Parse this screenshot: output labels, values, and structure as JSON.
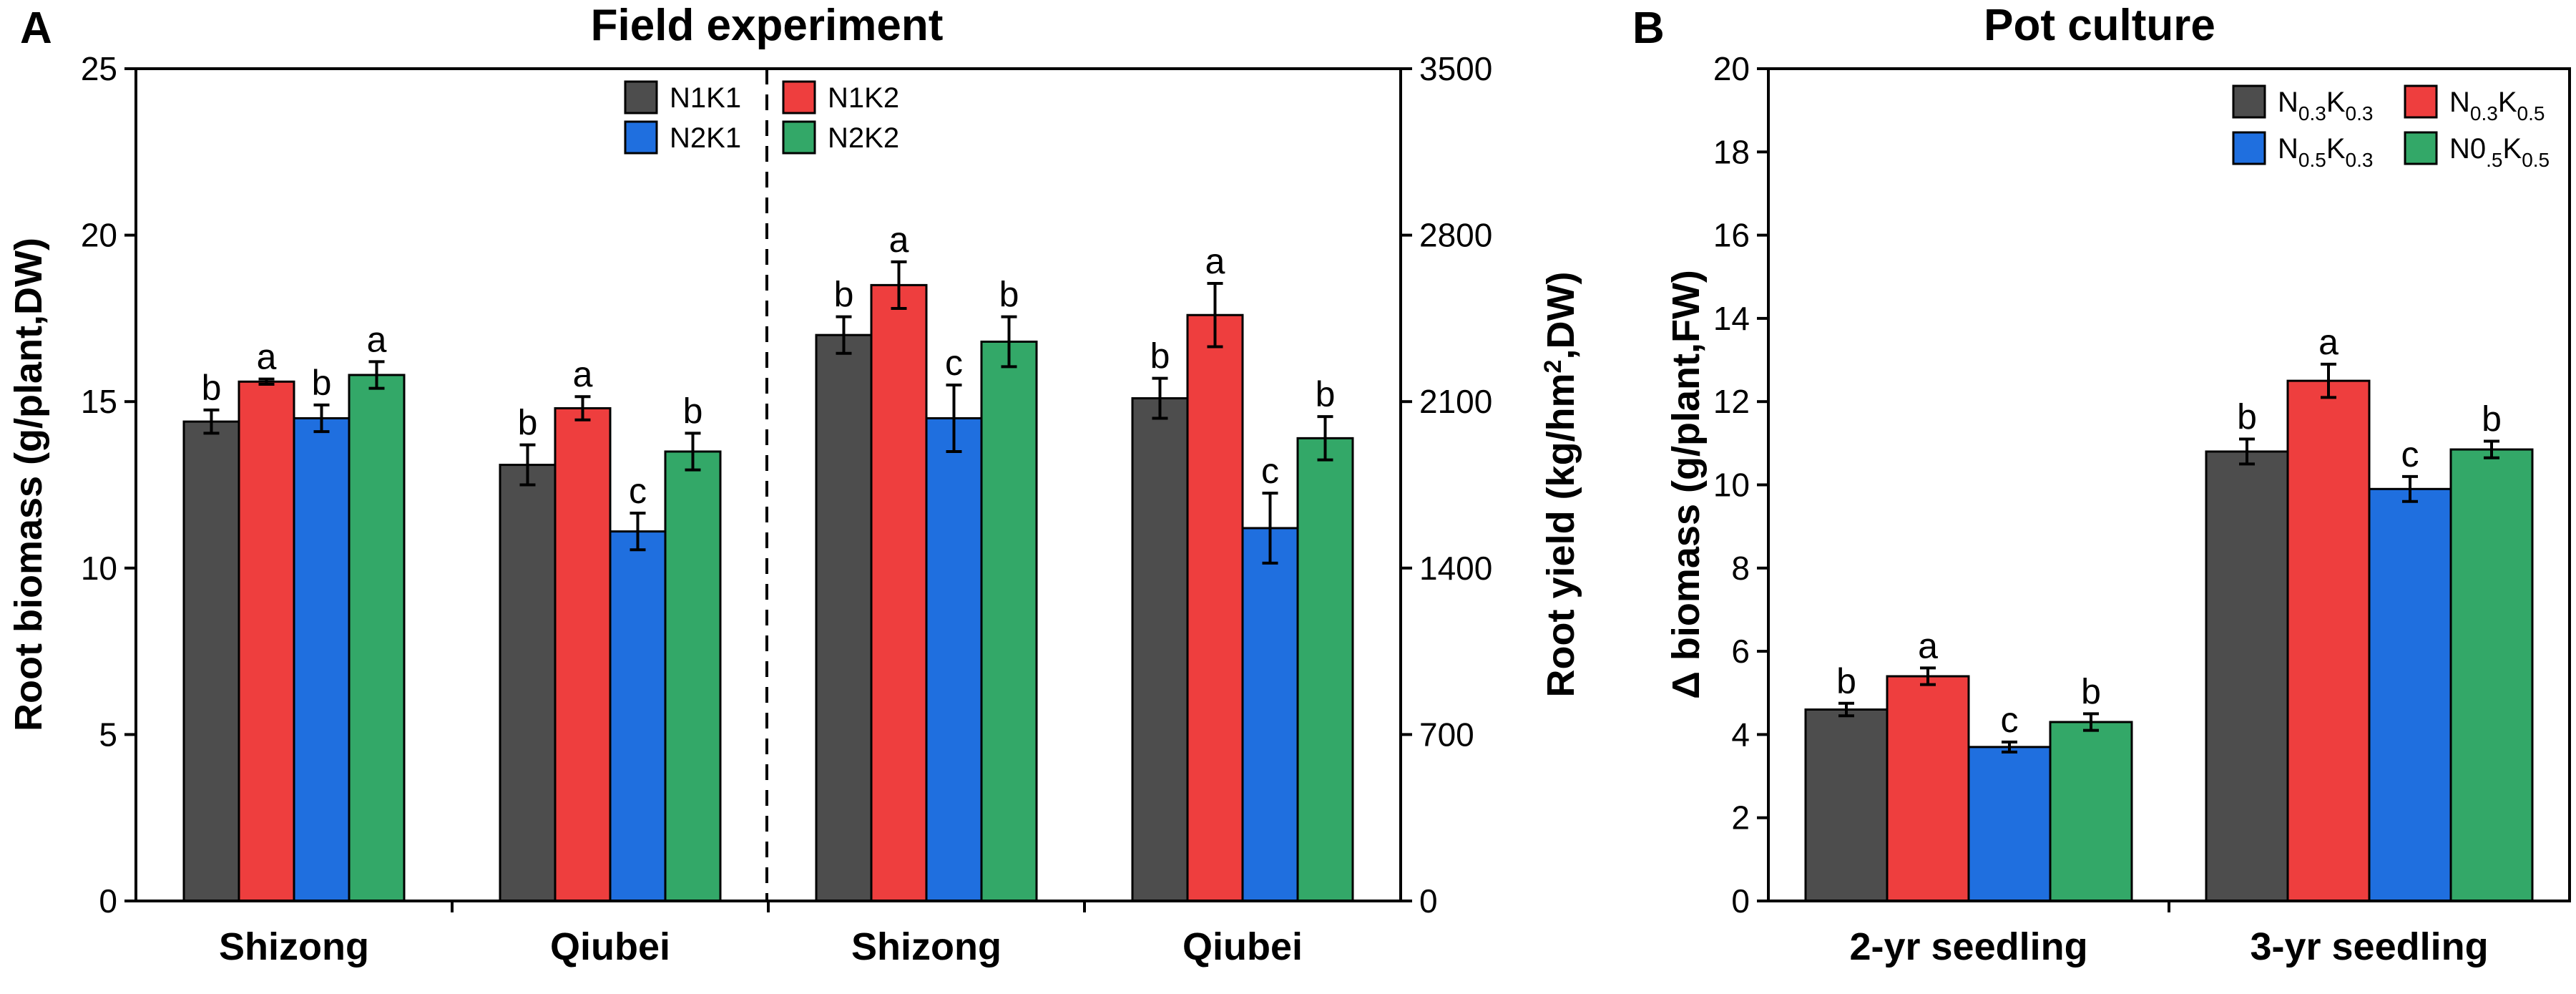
{
  "colors": {
    "N1K1": "#4d4d4d",
    "N1K2": "#ee3e3e",
    "N2K1": "#1f6fdf",
    "N2K2": "#33a868",
    "axis": "#000000",
    "background": "#ffffff"
  },
  "chart_data": [
    {
      "panel": "A",
      "type": "bar",
      "title": "Field experiment",
      "ylabel": "Root biomass (g/plant,DW)",
      "ylabel_right": {
        "main": "Root yield (kg/hm",
        "sup": "2",
        "tail": ",DW)"
      },
      "ylim": [
        0,
        25
      ],
      "y_ticks": [
        "0",
        "5",
        "10",
        "15",
        "20",
        "25"
      ],
      "ylim_right": [
        0,
        3500
      ],
      "y_ticks_right": [
        "0",
        "700",
        "1400",
        "2100",
        "2800",
        "3500"
      ],
      "categories": [
        "Shizong",
        "Qiubei",
        "Shizong",
        "Qiubei"
      ],
      "divider_after_category": 2,
      "legend": {
        "position": "top-center",
        "entries": [
          {
            "label": "N1K1",
            "color_key": "N1K1"
          },
          {
            "label": "N1K2",
            "color_key": "N1K2"
          },
          {
            "label": "N2K1",
            "color_key": "N2K1"
          },
          {
            "label": "N2K2",
            "color_key": "N2K2"
          }
        ]
      },
      "series": [
        {
          "name": "N1K1",
          "color_key": "N1K1",
          "values": [
            14.4,
            13.1,
            17.0,
            15.1
          ],
          "errors": [
            0.35,
            0.6,
            0.55,
            0.6
          ],
          "letters": [
            "b",
            "b",
            "b",
            "b"
          ]
        },
        {
          "name": "N1K2",
          "color_key": "N1K2",
          "values": [
            15.6,
            14.8,
            18.5,
            17.6
          ],
          "errors": [
            0.08,
            0.35,
            0.7,
            0.95
          ],
          "letters": [
            "a",
            "a",
            "a",
            "a"
          ]
        },
        {
          "name": "N2K1",
          "color_key": "N2K1",
          "values": [
            14.5,
            11.1,
            14.5,
            11.2
          ],
          "errors": [
            0.4,
            0.55,
            1.0,
            1.05
          ],
          "letters": [
            "b",
            "c",
            "c",
            "c"
          ]
        },
        {
          "name": "N2K2",
          "color_key": "N2K2",
          "values": [
            15.8,
            13.5,
            16.8,
            13.9
          ],
          "errors": [
            0.4,
            0.55,
            0.75,
            0.65
          ],
          "letters": [
            "a",
            "b",
            "b",
            "b"
          ]
        }
      ]
    },
    {
      "panel": "B",
      "type": "bar",
      "title": "Pot culture",
      "ylabel": "Δ biomass (g/plant,FW)",
      "ylim": [
        0,
        20
      ],
      "y_ticks": [
        "0",
        "2",
        "4",
        "6",
        "8",
        "10",
        "12",
        "14",
        "16",
        "18",
        "20"
      ],
      "categories": [
        "2-yr seedling",
        "3-yr seedling"
      ],
      "legend": {
        "position": "top-right",
        "entries": [
          {
            "color_key": "N1K1",
            "parts": [
              {
                "t": "N"
              },
              {
                "sub": "0.3"
              },
              {
                "t": "K"
              },
              {
                "sub": "0.3"
              }
            ]
          },
          {
            "color_key": "N1K2",
            "parts": [
              {
                "t": "N"
              },
              {
                "sub": "0.3"
              },
              {
                "t": "K"
              },
              {
                "sub": "0.5"
              }
            ]
          },
          {
            "color_key": "N2K1",
            "parts": [
              {
                "t": "N"
              },
              {
                "sub": "0.5"
              },
              {
                "t": "K"
              },
              {
                "sub": "0.3"
              }
            ]
          },
          {
            "color_key": "N2K2",
            "parts": [
              {
                "t": "N0"
              },
              {
                "sub": ".5"
              },
              {
                "t": "K"
              },
              {
                "sub": "0.5"
              }
            ]
          }
        ]
      },
      "series": [
        {
          "name": "N0.3K0.3",
          "color_key": "N1K1",
          "values": [
            4.6,
            10.8
          ],
          "errors": [
            0.15,
            0.3
          ],
          "letters": [
            "b",
            "b"
          ]
        },
        {
          "name": "N0.3K0.5",
          "color_key": "N1K2",
          "values": [
            5.4,
            12.5
          ],
          "errors": [
            0.2,
            0.4
          ],
          "letters": [
            "a",
            "a"
          ]
        },
        {
          "name": "N0.5K0.3",
          "color_key": "N2K1",
          "values": [
            3.7,
            9.9
          ],
          "errors": [
            0.12,
            0.3
          ],
          "letters": [
            "c",
            "c"
          ]
        },
        {
          "name": "N0.5K0.5",
          "color_key": "N2K2",
          "values": [
            4.3,
            10.85
          ],
          "errors": [
            0.2,
            0.2
          ],
          "letters": [
            "b",
            "b"
          ]
        }
      ]
    }
  ]
}
